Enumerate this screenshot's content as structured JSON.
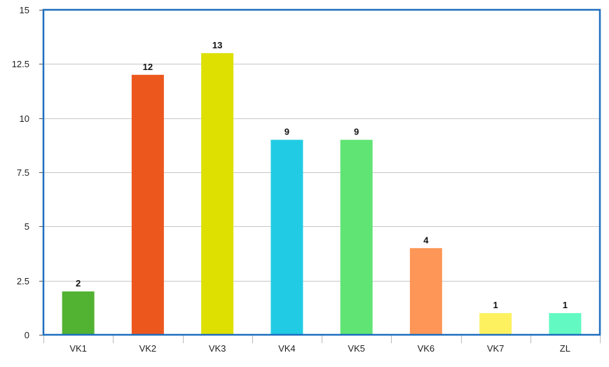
{
  "chart_data": {
    "type": "bar",
    "categories": [
      "VK1",
      "VK2",
      "VK3",
      "VK4",
      "VK5",
      "VK6",
      "VK7",
      "ZL"
    ],
    "values": [
      2,
      12,
      13,
      9,
      9,
      4,
      1,
      1
    ],
    "colors": [
      "#52b232",
      "#ec571e",
      "#dde000",
      "#22cbe4",
      "#60e474",
      "#fd9656",
      "#fdf160",
      "#63f9c3"
    ],
    "data_labels": [
      "2",
      "12",
      "13",
      "9",
      "9",
      "4",
      "1",
      "1"
    ],
    "title": "",
    "xlabel": "",
    "ylabel": "",
    "ylim": [
      0,
      15
    ],
    "yticks": [
      0,
      2.5,
      5,
      7.5,
      10,
      12.5,
      15
    ],
    "ytick_labels": [
      "0",
      "2.5",
      "5",
      "7.5",
      "10",
      "12.5",
      "15"
    ],
    "grid": true,
    "legend": "none",
    "plot_border_color": "#1f6fbf",
    "gridline_color": "#c8c8c8"
  }
}
